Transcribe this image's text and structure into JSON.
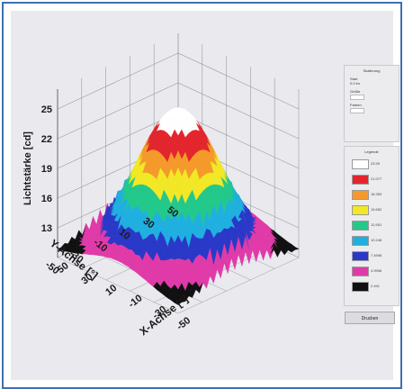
{
  "chart_data": {
    "type": "surface3d",
    "zlabel": "Lichtstärke [cd]",
    "xlabel": "X-Achse [°]",
    "ylabel": "Y-Achse [°]",
    "z_ticks": [
      "25",
      "22",
      "19",
      "16",
      "13"
    ],
    "x_ticks": [
      "50",
      "30",
      "10",
      "-10",
      "-30",
      "-50"
    ],
    "y_ticks": [
      "50",
      "30",
      "10",
      "-10",
      "-30",
      "-50"
    ],
    "x_range": [
      -50,
      50
    ],
    "y_range": [
      -50,
      50
    ],
    "z_range": [
      10,
      25
    ],
    "peak": {
      "x": 0,
      "y": 0,
      "z": 25
    },
    "colormap": [
      "#101010",
      "#e03aa8",
      "#2a38c8",
      "#1fb0e0",
      "#22c98a",
      "#f2e826",
      "#f59a2a",
      "#e3262e",
      "#ffffff"
    ]
  },
  "settings_panel": {
    "title": "Skalierung",
    "fields": [
      {
        "label": "Start",
        "value": "0.0 lm"
      },
      {
        "label": "Größe",
        "value": "2"
      },
      {
        "label": "Farben",
        "value": "9"
      }
    ]
  },
  "legend": {
    "title": "Legende",
    "entries": [
      {
        "label": "23.99",
        "color": "#ffffff"
      },
      {
        "label": "21.077",
        "color": "#e3262e"
      },
      {
        "label": "18.359",
        "color": "#f59a2a"
      },
      {
        "label": "15.652",
        "color": "#f2e826"
      },
      {
        "label": "12.951",
        "color": "#22c98a"
      },
      {
        "label": "10.248",
        "color": "#1fb0e0"
      },
      {
        "label": "7.4998",
        "color": "#2a38c8"
      },
      {
        "label": "4.9996",
        "color": "#e03aa8"
      },
      {
        "label": "2.491",
        "color": "#101010"
      }
    ]
  },
  "button": {
    "label": "Drucken"
  }
}
